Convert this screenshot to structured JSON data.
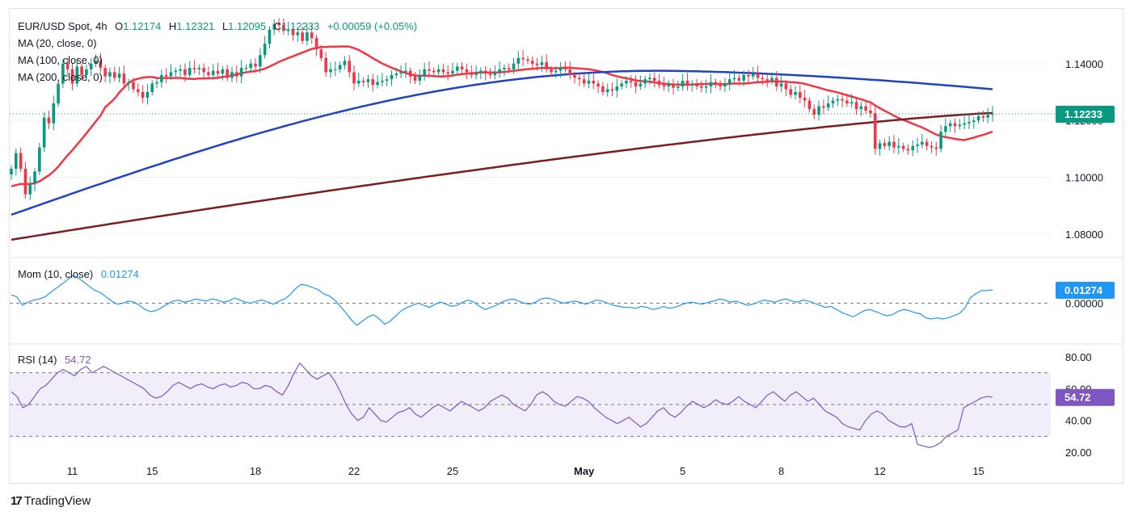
{
  "header": {
    "symbol": "EUR/USD Spot, 4h",
    "open_label": "O",
    "open": "1.12174",
    "high_label": "H",
    "high": "1.12321",
    "low_label": "L",
    "low": "1.12095",
    "close_label": "C",
    "close": "1.12233",
    "change": "+0.00059 (+0.05%)"
  },
  "indicators": {
    "ma20": "MA (20, close, 0)",
    "ma100": "MA (100, close, 0)",
    "ma200": "MA (200, close, 0)",
    "mom_label": "Mom (10, close)",
    "mom_value": "0.01274",
    "rsi_label": "RSI (14)",
    "rsi_value": "54.72"
  },
  "colors": {
    "up": "#089981",
    "down": "#f23645",
    "ma20": "#f23645",
    "ma100": "#2144c1",
    "ma200": "#7a1e1e",
    "mom": "#2196f3",
    "rsi": "#7e57c2",
    "price_badge": "#089981"
  },
  "brand": "TradingView",
  "chart_data": [
    {
      "type": "candlestick",
      "title": "EUR/USD Spot, 4h",
      "y_ticks": [
        1.08,
        1.1,
        1.12,
        1.14
      ],
      "y_tick_labels": [
        "1.08000",
        "1.10000",
        "1.12000",
        "1.14000"
      ],
      "ylim": [
        1.072,
        1.159
      ],
      "last_price": 1.12233,
      "last_price_label": "1.12233",
      "x_tick_labels": [
        "11",
        "15",
        "18",
        "22",
        "25",
        "May",
        "5",
        "8",
        "12",
        "15"
      ],
      "x_tick_index": [
        13,
        30,
        52,
        73,
        94,
        122,
        143,
        164,
        185,
        206
      ],
      "closes": [
        1.103,
        1.1085,
        1.103,
        1.094,
        1.0975,
        1.102,
        1.1105,
        1.121,
        1.119,
        1.126,
        1.133,
        1.14,
        1.138,
        1.133,
        1.139,
        1.136,
        1.138,
        1.14,
        1.141,
        1.1385,
        1.1355,
        1.137,
        1.135,
        1.1365,
        1.133,
        1.1335,
        1.131,
        1.13,
        1.128,
        1.13,
        1.133,
        1.1335,
        1.136,
        1.1355,
        1.137,
        1.1375,
        1.138,
        1.136,
        1.1385,
        1.138,
        1.1385,
        1.137,
        1.136,
        1.1375,
        1.1365,
        1.138,
        1.135,
        1.137,
        1.1355,
        1.1385,
        1.1385,
        1.14,
        1.139,
        1.143,
        1.147,
        1.152,
        1.154,
        1.1535,
        1.1515,
        1.152,
        1.15,
        1.151,
        1.148,
        1.151,
        1.149,
        1.145,
        1.142,
        1.137,
        1.138,
        1.138,
        1.1395,
        1.141,
        1.137,
        1.133,
        1.134,
        1.1335,
        1.1345,
        1.1325,
        1.1335,
        1.134,
        1.1345,
        1.136,
        1.1365,
        1.137,
        1.1375,
        1.1355,
        1.134,
        1.136,
        1.138,
        1.1375,
        1.137,
        1.138,
        1.137,
        1.1365,
        1.1375,
        1.139,
        1.138,
        1.137,
        1.136,
        1.1365,
        1.1375,
        1.1365,
        1.136,
        1.137,
        1.138,
        1.1385,
        1.138,
        1.14,
        1.142,
        1.1415,
        1.141,
        1.14,
        1.1395,
        1.1405,
        1.138,
        1.137,
        1.1375,
        1.1385,
        1.138,
        1.136,
        1.135,
        1.1345,
        1.133,
        1.134,
        1.133,
        1.132,
        1.13,
        1.131,
        1.1305,
        1.132,
        1.133,
        1.134,
        1.1335,
        1.132,
        1.133,
        1.1345,
        1.135,
        1.134,
        1.1325,
        1.132,
        1.133,
        1.1315,
        1.132,
        1.134,
        1.1325,
        1.133,
        1.132,
        1.1315,
        1.132,
        1.1335,
        1.1325,
        1.132,
        1.133,
        1.1345,
        1.135,
        1.134,
        1.136,
        1.1355,
        1.1365,
        1.135,
        1.1345,
        1.134,
        1.135,
        1.132,
        1.133,
        1.131,
        1.129,
        1.13,
        1.128,
        1.127,
        1.124,
        1.122,
        1.125,
        1.1245,
        1.126,
        1.127,
        1.1275,
        1.127,
        1.126,
        1.1265,
        1.124,
        1.125,
        1.1235,
        1.1225,
        1.11,
        1.112,
        1.111,
        1.1125,
        1.1105,
        1.111,
        1.11,
        1.1095,
        1.111,
        1.1115,
        1.1125,
        1.111,
        1.1105,
        1.11,
        1.116,
        1.118,
        1.119,
        1.118,
        1.1185,
        1.119,
        1.1195,
        1.12,
        1.1215,
        1.121,
        1.122,
        1.1223
      ],
      "series": [
        {
          "name": "MA (20, close, 0)",
          "start": 1.0968,
          "end": 1.117
        },
        {
          "name": "MA (100, close, 0)",
          "start": 1.0868,
          "end": 1.131
        },
        {
          "name": "MA (200, close, 0)",
          "start": 1.078,
          "end": 1.1226
        }
      ]
    },
    {
      "type": "line",
      "title": "Mom (10, close)",
      "y_ticks": [
        0.0
      ],
      "y_tick_labels": [
        "0.00000"
      ],
      "ylim": [
        -0.038,
        0.038
      ],
      "last_value_label": "0.01274",
      "values": [
        0.008,
        0.006,
        -0.002,
        0.001,
        0.003,
        0.004,
        0.006,
        0.01,
        0.014,
        0.018,
        0.022,
        0.026,
        0.024,
        0.02,
        0.016,
        0.012,
        0.01,
        0.006,
        0.002,
        -0.001,
        0.0,
        0.002,
        0.001,
        -0.002,
        -0.006,
        -0.008,
        -0.007,
        -0.004,
        -0.001,
        0.002,
        0.003,
        0.001,
        0.002,
        0.004,
        0.003,
        0.002,
        0.004,
        0.003,
        0.001,
        0.002,
        0.005,
        0.003,
        0.001,
        0.0,
        0.002,
        0.003,
        0.001,
        -0.001,
        0.002,
        0.004,
        0.008,
        0.014,
        0.018,
        0.017,
        0.015,
        0.013,
        0.009,
        0.007,
        0.003,
        -0.003,
        -0.009,
        -0.016,
        -0.021,
        -0.017,
        -0.013,
        -0.011,
        -0.015,
        -0.02,
        -0.017,
        -0.012,
        -0.007,
        -0.004,
        -0.002,
        0.0,
        -0.002,
        -0.004,
        -0.001,
        0.001,
        -0.001,
        -0.003,
        -0.002,
        0.001,
        0.003,
        0.001,
        -0.003,
        -0.006,
        -0.004,
        -0.002,
        0.001,
        0.003,
        0.004,
        0.002,
        0.0,
        -0.001,
        0.001,
        0.004,
        0.005,
        0.004,
        0.002,
        0.0,
        0.001,
        0.002,
        0.001,
        -0.001,
        0.001,
        0.003,
        0.002,
        0.0,
        -0.002,
        -0.003,
        -0.004,
        -0.004,
        -0.005,
        -0.003,
        -0.004,
        -0.006,
        -0.005,
        -0.003,
        -0.005,
        -0.004,
        -0.002,
        0.0,
        0.001,
        0.0,
        -0.001,
        0.001,
        0.002,
        0.004,
        0.003,
        0.001,
        0.002,
        0.0,
        -0.002,
        -0.001,
        0.001,
        0.003,
        0.002,
        0.001,
        0.003,
        0.004,
        0.002,
        0.001,
        0.003,
        0.002,
        0.0,
        -0.002,
        -0.004,
        -0.003,
        -0.006,
        -0.009,
        -0.011,
        -0.013,
        -0.01,
        -0.007,
        -0.006,
        -0.008,
        -0.01,
        -0.012,
        -0.011,
        -0.008,
        -0.006,
        -0.007,
        -0.009,
        -0.01,
        -0.014,
        -0.015,
        -0.014,
        -0.015,
        -0.014,
        -0.012,
        -0.01,
        -0.005,
        0.005,
        0.009,
        0.012,
        0.012,
        0.0127
      ],
      "ylabel": ""
    },
    {
      "type": "line",
      "title": "RSI (14)",
      "y_ticks": [
        20,
        40,
        60,
        80
      ],
      "y_tick_labels": [
        "20.00",
        "40.00",
        "60.00",
        "80.00"
      ],
      "ylim": [
        15,
        85
      ],
      "band": [
        30,
        70
      ],
      "midline": 50,
      "last_value_label": "54.72",
      "values": [
        58,
        55,
        48,
        50,
        55,
        60,
        62,
        66,
        70,
        72,
        70,
        68,
        72,
        74,
        70,
        72,
        74,
        72,
        70,
        68,
        66,
        64,
        62,
        60,
        56,
        54,
        55,
        58,
        62,
        64,
        62,
        60,
        62,
        63,
        61,
        60,
        62,
        63,
        61,
        62,
        64,
        63,
        60,
        60,
        62,
        61,
        58,
        56,
        62,
        70,
        76,
        72,
        68,
        66,
        68,
        70,
        65,
        58,
        50,
        44,
        40,
        42,
        48,
        44,
        40,
        39,
        42,
        45,
        46,
        48,
        44,
        42,
        45,
        48,
        50,
        48,
        46,
        49,
        52,
        50,
        48,
        46,
        48,
        52,
        54,
        56,
        54,
        50,
        48,
        46,
        50,
        56,
        58,
        56,
        52,
        50,
        49,
        52,
        55,
        54,
        52,
        48,
        45,
        42,
        40,
        38,
        40,
        42,
        39,
        36,
        38,
        42,
        46,
        48,
        44,
        42,
        45,
        49,
        52,
        50,
        48,
        50,
        53,
        51,
        50,
        52,
        55,
        52,
        50,
        48,
        52,
        56,
        58,
        55,
        52,
        56,
        58,
        55,
        52,
        54,
        50,
        46,
        44,
        42,
        38,
        36,
        35,
        34,
        40,
        44,
        46,
        44,
        40,
        38,
        36,
        36,
        38,
        25,
        24,
        23,
        24,
        26,
        30,
        32,
        34,
        48,
        50,
        52,
        54,
        55,
        54.72
      ],
      "ylabel": ""
    }
  ]
}
